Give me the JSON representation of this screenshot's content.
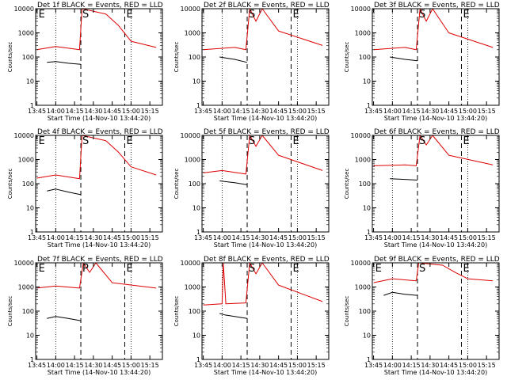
{
  "figure": {
    "ylabel": "Counts/sec",
    "xlabel": "Start Time (14-Nov-10 13:44:20)",
    "x_ticks": [
      "13:45",
      "14:00",
      "14:15",
      "14:30",
      "14:45",
      "15:00",
      "15:15"
    ],
    "y_ticks": [
      "1",
      "10",
      "100",
      "1000",
      "10000"
    ],
    "marker_labels": {
      "E": "E",
      "S": "S"
    },
    "colors": {
      "events": "#000000",
      "lld": "#dd0000",
      "axes": "#000000"
    }
  },
  "chart_data": [
    {
      "type": "line",
      "title": "Det 1f BLACK = Events, RED = LLD",
      "ylim": [
        1,
        10000
      ],
      "yscale": "log",
      "markers": [
        {
          "label": "E",
          "x": "13:45"
        },
        {
          "label": "S",
          "x": "14:20"
        },
        {
          "label": "E",
          "x": "14:55"
        }
      ],
      "series": [
        {
          "name": "Events",
          "color": "#000000",
          "points": [
            [
              "13:53",
              60
            ],
            [
              "14:00",
              65
            ],
            [
              "14:10",
              55
            ],
            [
              "14:20",
              50
            ]
          ]
        },
        {
          "name": "LLD",
          "color": "#dd0000",
          "points": [
            [
              "13:45",
              200
            ],
            [
              "14:00",
              270
            ],
            [
              "14:19",
              200
            ],
            [
              "14:21",
              10000
            ],
            [
              "14:40",
              6000
            ],
            [
              "14:50",
              2000
            ],
            [
              "15:00",
              450
            ],
            [
              "15:20",
              250
            ]
          ]
        }
      ]
    },
    {
      "type": "line",
      "title": "Det 2f BLACK = Events, RED = LLD",
      "ylim": [
        1,
        10000
      ],
      "yscale": "log",
      "markers": [
        {
          "label": "S",
          "x": "14:20"
        },
        {
          "label": "E",
          "x": "14:55"
        }
      ],
      "series": [
        {
          "name": "Events",
          "color": "#000000",
          "points": [
            [
              "13:58",
              100
            ],
            [
              "14:10",
              80
            ],
            [
              "14:20",
              60
            ]
          ]
        },
        {
          "name": "LLD",
          "color": "#dd0000",
          "points": [
            [
              "13:45",
              200
            ],
            [
              "14:10",
              250
            ],
            [
              "14:19",
              200
            ],
            [
              "14:22",
              10000
            ],
            [
              "14:27",
              3000
            ],
            [
              "14:32",
              10000
            ],
            [
              "14:45",
              1200
            ],
            [
              "15:20",
              300
            ]
          ]
        }
      ]
    },
    {
      "type": "line",
      "title": "Det 3f BLACK = Events, RED = LLD",
      "ylim": [
        1,
        10000
      ],
      "yscale": "log",
      "markers": [
        {
          "label": "S",
          "x": "14:20"
        },
        {
          "label": "E",
          "x": "14:55"
        }
      ],
      "series": [
        {
          "name": "Events",
          "color": "#000000",
          "points": [
            [
              "13:58",
              100
            ],
            [
              "14:10",
              80
            ],
            [
              "14:20",
              70
            ]
          ]
        },
        {
          "name": "LLD",
          "color": "#dd0000",
          "points": [
            [
              "13:45",
              200
            ],
            [
              "14:10",
              250
            ],
            [
              "14:19",
              200
            ],
            [
              "14:22",
              10000
            ],
            [
              "14:27",
              3000
            ],
            [
              "14:32",
              10000
            ],
            [
              "14:45",
              1000
            ],
            [
              "15:20",
              250
            ]
          ]
        }
      ]
    },
    {
      "type": "line",
      "title": "Det 4f BLACK = Events, RED = LLD",
      "ylim": [
        1,
        10000
      ],
      "yscale": "log",
      "markers": [
        {
          "label": "E",
          "x": "13:45"
        },
        {
          "label": "S",
          "x": "14:20"
        },
        {
          "label": "E",
          "x": "14:55"
        }
      ],
      "series": [
        {
          "name": "Events",
          "color": "#000000",
          "points": [
            [
              "13:53",
              50
            ],
            [
              "14:00",
              60
            ],
            [
              "14:10",
              45
            ],
            [
              "14:20",
              35
            ]
          ]
        },
        {
          "name": "LLD",
          "color": "#dd0000",
          "points": [
            [
              "13:45",
              170
            ],
            [
              "14:00",
              230
            ],
            [
              "14:19",
              160
            ],
            [
              "14:21",
              10000
            ],
            [
              "14:40",
              6000
            ],
            [
              "14:50",
              2000
            ],
            [
              "15:00",
              500
            ],
            [
              "15:20",
              230
            ]
          ]
        }
      ]
    },
    {
      "type": "line",
      "title": "Det 5f BLACK = Events, RED = LLD",
      "ylim": [
        1,
        10000
      ],
      "yscale": "log",
      "markers": [
        {
          "label": "S",
          "x": "14:20"
        },
        {
          "label": "E",
          "x": "14:55"
        }
      ],
      "series": [
        {
          "name": "Events",
          "color": "#000000",
          "points": [
            [
              "13:58",
              130
            ],
            [
              "14:10",
              110
            ],
            [
              "14:20",
              90
            ]
          ]
        },
        {
          "name": "LLD",
          "color": "#dd0000",
          "points": [
            [
              "13:45",
              280
            ],
            [
              "14:00",
              350
            ],
            [
              "14:19",
              250
            ],
            [
              "14:22",
              10000
            ],
            [
              "14:27",
              3500
            ],
            [
              "14:32",
              10000
            ],
            [
              "14:45",
              1500
            ],
            [
              "15:20",
              350
            ]
          ]
        }
      ]
    },
    {
      "type": "line",
      "title": "Det 6f BLACK = Events, RED = LLD",
      "ylim": [
        1,
        10000
      ],
      "yscale": "log",
      "markers": [
        {
          "label": "S",
          "x": "14:20"
        },
        {
          "label": "E",
          "x": "14:55"
        }
      ],
      "series": [
        {
          "name": "Events",
          "color": "#000000",
          "points": [
            [
              "13:58",
              160
            ],
            [
              "14:10",
              150
            ],
            [
              "14:20",
              140
            ]
          ]
        },
        {
          "name": "LLD",
          "color": "#dd0000",
          "points": [
            [
              "13:45",
              550
            ],
            [
              "14:10",
              600
            ],
            [
              "14:19",
              550
            ],
            [
              "14:22",
              10000
            ],
            [
              "14:27",
              4000
            ],
            [
              "14:32",
              10000
            ],
            [
              "14:45",
              1500
            ],
            [
              "15:20",
              600
            ]
          ]
        }
      ]
    },
    {
      "type": "line",
      "title": "Det 7f BLACK = Events, RED = LLD",
      "ylim": [
        1,
        10000
      ],
      "yscale": "log",
      "markers": [
        {
          "label": "E",
          "x": "13:45"
        },
        {
          "label": "P",
          "x": "14:20"
        },
        {
          "label": "E",
          "x": "14:55"
        }
      ],
      "series": [
        {
          "name": "Events",
          "color": "#000000",
          "points": [
            [
              "13:53",
              50
            ],
            [
              "14:00",
              60
            ],
            [
              "14:10",
              50
            ],
            [
              "14:20",
              40
            ]
          ]
        },
        {
          "name": "LLD",
          "color": "#dd0000",
          "points": [
            [
              "13:45",
              900
            ],
            [
              "14:00",
              1100
            ],
            [
              "14:19",
              900
            ],
            [
              "14:22",
              10000
            ],
            [
              "14:27",
              4000
            ],
            [
              "14:32",
              10000
            ],
            [
              "14:45",
              1500
            ],
            [
              "15:20",
              900
            ]
          ]
        }
      ]
    },
    {
      "type": "line",
      "title": "Det 8f BLACK = Events, RED = LLD",
      "ylim": [
        1,
        10000
      ],
      "yscale": "log",
      "markers": [
        {
          "label": "S",
          "x": "14:20"
        },
        {
          "label": "E",
          "x": "14:55"
        }
      ],
      "series": [
        {
          "name": "Events",
          "color": "#000000",
          "points": [
            [
              "13:58",
              80
            ],
            [
              "14:02",
              70
            ],
            [
              "14:10",
              60
            ],
            [
              "14:20",
              50
            ]
          ]
        },
        {
          "name": "LLD",
          "color": "#dd0000",
          "points": [
            [
              "13:45",
              180
            ],
            [
              "14:00",
              200
            ],
            [
              "14:01",
              10000
            ],
            [
              "14:03",
              200
            ],
            [
              "14:19",
              220
            ],
            [
              "14:22",
              10000
            ],
            [
              "14:27",
              3500
            ],
            [
              "14:32",
              10000
            ],
            [
              "14:45",
              1200
            ],
            [
              "15:20",
              250
            ]
          ]
        }
      ]
    },
    {
      "type": "line",
      "title": "Det 9f BLACK = Events, RED = LLD",
      "ylim": [
        1,
        10000
      ],
      "yscale": "log",
      "markers": [
        {
          "label": "E",
          "x": "13:45"
        },
        {
          "label": "S",
          "x": "14:20"
        },
        {
          "label": "E",
          "x": "14:55"
        }
      ],
      "series": [
        {
          "name": "Events",
          "color": "#000000",
          "points": [
            [
              "13:53",
              450
            ],
            [
              "14:00",
              600
            ],
            [
              "14:10",
              500
            ],
            [
              "14:20",
              450
            ]
          ]
        },
        {
          "name": "LLD",
          "color": "#dd0000",
          "points": [
            [
              "13:45",
              1500
            ],
            [
              "14:00",
              2200
            ],
            [
              "14:19",
              1800
            ],
            [
              "14:21",
              10000
            ],
            [
              "14:40",
              8000
            ],
            [
              "14:50",
              4000
            ],
            [
              "15:00",
              2200
            ],
            [
              "15:20",
              1800
            ]
          ]
        }
      ]
    }
  ]
}
